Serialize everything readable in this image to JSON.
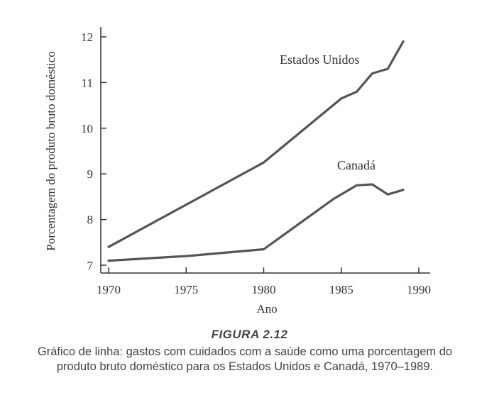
{
  "chart_data": {
    "type": "line",
    "title": "",
    "xlabel": "Ano",
    "ylabel": "Porcentagem do produto bruto doméstico",
    "xlim": [
      1970,
      1990
    ],
    "ylim": [
      7,
      12
    ],
    "xticks": [
      1970,
      1975,
      1980,
      1985,
      1990
    ],
    "yticks": [
      7,
      8,
      9,
      10,
      11,
      12
    ],
    "grid": false,
    "series": [
      {
        "name": "Estados Unidos",
        "x": [
          1970,
          1980,
          1985,
          1986,
          1987,
          1988,
          1989
        ],
        "values": [
          7.4,
          9.25,
          10.65,
          10.8,
          11.2,
          11.3,
          11.9
        ]
      },
      {
        "name": "Canadá",
        "x": [
          1970,
          1975,
          1980,
          1984.5,
          1986,
          1987,
          1988,
          1989
        ],
        "values": [
          7.1,
          7.2,
          7.35,
          8.45,
          8.75,
          8.77,
          8.55,
          8.65
        ]
      }
    ]
  },
  "figure": {
    "title": "FIGURA 2.12",
    "caption_line1": "Gráfico de linha: gastos com cuidados com a saúde como uma porcentagem do",
    "caption_line2": "produto bruto doméstico para os Estados Unidos e Canadá, 1970–1989."
  },
  "colors": {
    "line": "#555555",
    "axis": "#333333"
  }
}
